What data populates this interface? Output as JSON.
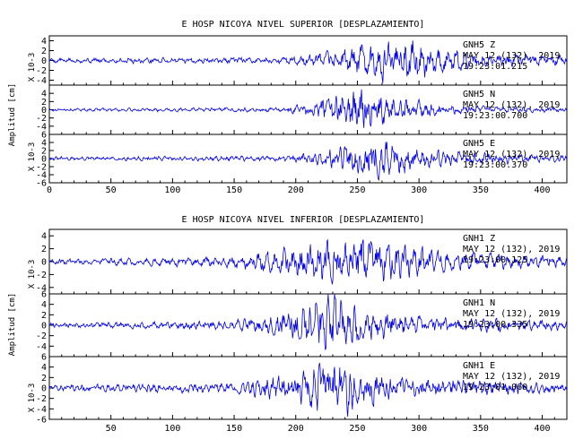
{
  "chart_data": [
    {
      "type": "line",
      "title": "E HOSP NICOYA NIVEL SUPERIOR [DESPLAZAMIENTO]",
      "ylabel": "Amplitud [cm]",
      "yscale_label": "X 10-3",
      "xlim": [
        0,
        420
      ],
      "x_ticks": [
        "0",
        "50",
        "100",
        "150",
        "200",
        "250",
        "300",
        "350",
        "400"
      ],
      "series": [
        {
          "station": "GNH5",
          "component": "Z",
          "date": "MAY 12 (132), 2019",
          "time": "19:23:01.215",
          "ylim": [
            -5,
            5
          ],
          "y_ticks": [
            "4",
            "2",
            "0",
            "-2",
            "-4"
          ],
          "envelope": [
            [
              0,
              0.5
            ],
            [
              190,
              0.7
            ],
            [
              215,
              1.4
            ],
            [
              240,
              2.6
            ],
            [
              265,
              3.8
            ],
            [
              295,
              4.6
            ],
            [
              315,
              3.0
            ],
            [
              345,
              1.6
            ],
            [
              420,
              1.0
            ]
          ]
        },
        {
          "station": "GNH5",
          "component": "N",
          "date": "MAY 12 (132), 2019",
          "time": "19:23:00.700",
          "ylim": [
            -6,
            6
          ],
          "y_ticks": [
            "4",
            "2",
            "0",
            "-2",
            "-4"
          ],
          "envelope": [
            [
              0,
              0.3
            ],
            [
              190,
              0.5
            ],
            [
              215,
              1.5
            ],
            [
              235,
              3.6
            ],
            [
              245,
              5.0
            ],
            [
              260,
              3.8
            ],
            [
              285,
              2.2
            ],
            [
              330,
              0.9
            ],
            [
              420,
              0.5
            ]
          ]
        },
        {
          "station": "GNH5",
          "component": "E",
          "date": "MAY 12 (132), 2019",
          "time": "19:23:00.370",
          "ylim": [
            -6,
            6
          ],
          "y_ticks": [
            "6",
            "4",
            "2",
            "0",
            "-2",
            "-4",
            "-6"
          ],
          "envelope": [
            [
              0,
              0.4
            ],
            [
              190,
              0.6
            ],
            [
              215,
              1.5
            ],
            [
              240,
              3.0
            ],
            [
              260,
              4.2
            ],
            [
              285,
              3.3
            ],
            [
              320,
              1.6
            ],
            [
              420,
              0.7
            ]
          ]
        }
      ]
    },
    {
      "type": "line",
      "title": "E HOSP NICOYA NIVEL INFERIOR [DESPLAZAMIENTO]",
      "ylabel": "Amplitud [cm]",
      "yscale_label": "X 10-3",
      "xlim": [
        0,
        420
      ],
      "x_ticks": [
        "50",
        "100",
        "150",
        "200",
        "250",
        "300",
        "350",
        "400"
      ],
      "series": [
        {
          "station": "GNH1",
          "component": "Z",
          "date": "MAY 12 (132), 2019",
          "time": "19:23:00.125",
          "ylim": [
            -5,
            5
          ],
          "y_ticks": [
            "4",
            "2",
            "0",
            "-2",
            "-4"
          ],
          "envelope": [
            [
              0,
              0.4
            ],
            [
              140,
              0.8
            ],
            [
              170,
              1.4
            ],
            [
              205,
              2.6
            ],
            [
              230,
              3.4
            ],
            [
              255,
              4.0
            ],
            [
              285,
              2.8
            ],
            [
              325,
              1.5
            ],
            [
              420,
              0.8
            ]
          ]
        },
        {
          "station": "GNH1",
          "component": "N",
          "date": "MAY 12 (132), 2019",
          "time": "19:23:00.335",
          "ylim": [
            -6,
            6
          ],
          "y_ticks": [
            "6",
            "4",
            "2",
            "0",
            "-2",
            "-4"
          ],
          "envelope": [
            [
              0,
              0.4
            ],
            [
              150,
              0.8
            ],
            [
              180,
              1.6
            ],
            [
              210,
              3.2
            ],
            [
              225,
              5.0
            ],
            [
              250,
              3.2
            ],
            [
              290,
              1.6
            ],
            [
              420,
              0.7
            ]
          ]
        },
        {
          "station": "GNH1",
          "component": "E",
          "date": "MAY 12 (132), 2019",
          "time": "19:23:01.060",
          "ylim": [
            -6,
            6
          ],
          "y_ticks": [
            "6",
            "4",
            "2",
            "0",
            "-2",
            "-4",
            "-6"
          ],
          "envelope": [
            [
              0,
              0.5
            ],
            [
              150,
              0.9
            ],
            [
              180,
              1.8
            ],
            [
              205,
              3.4
            ],
            [
              225,
              4.8
            ],
            [
              255,
              3.3
            ],
            [
              290,
              1.6
            ],
            [
              420,
              0.8
            ]
          ]
        }
      ]
    }
  ]
}
